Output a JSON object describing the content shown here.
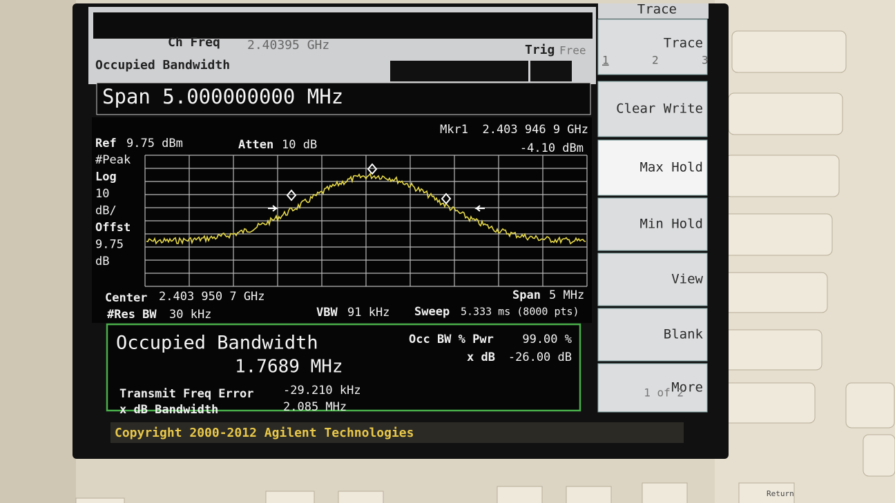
{
  "header": {
    "top_label": "Trace",
    "ch_freq_label": "Ch Freq",
    "ch_freq_value": "2.40395 GHz",
    "mode": "Occupied Bandwidth",
    "trig_label": "Trig",
    "trig_value": "Free",
    "span": "Span 5.000000000 MHz"
  },
  "display": {
    "ref_label": "Ref",
    "ref_value": "9.75 dBm",
    "atten_label": "Atten",
    "atten_value": "10 dB",
    "marker": "Mkr1  2.403 946 9 GHz",
    "marker_level": "-4.10 dBm",
    "left_labels": [
      "#Peak",
      "Log",
      "10",
      "dB/",
      "Offst",
      "9.75",
      "dB"
    ],
    "center_label": "Center",
    "center_value": "2.403 950 7 GHz",
    "span_label": "Span",
    "span_value": "5 MHz",
    "res_bw_label": "#Res BW",
    "res_bw_value": "30 kHz",
    "vbw_label": "VBW",
    "vbw_value": "91 kHz",
    "sweep_label": "Sweep",
    "sweep_value": "5.333 ms (8000 pts)"
  },
  "results": {
    "title": "Occupied Bandwidth",
    "value": "1.7689 MHz",
    "occ_pwr_label": "Occ BW % Pwr",
    "occ_pwr_value": "99.00 %",
    "xdb_label": "x dB",
    "xdb_value": "-26.00 dB",
    "freq_error_label": "Transmit Freq Error",
    "freq_error_value": "-29.210 kHz",
    "xdb_bw_label": "x dB Bandwidth",
    "xdb_bw_value": "2.085 MHz"
  },
  "footer": {
    "copyright": "Copyright 2000-2012 Agilent Technologies"
  },
  "softkeys": {
    "trace_label": "Trace",
    "trace_options": [
      "1",
      "2",
      "3"
    ],
    "clear_write": "Clear Write",
    "max_hold": "Max Hold",
    "min_hold": "Min Hold",
    "view": "View",
    "blank": "Blank",
    "more": "More",
    "more_page": "1 of 2"
  },
  "bezel": {
    "return": "Return"
  }
}
